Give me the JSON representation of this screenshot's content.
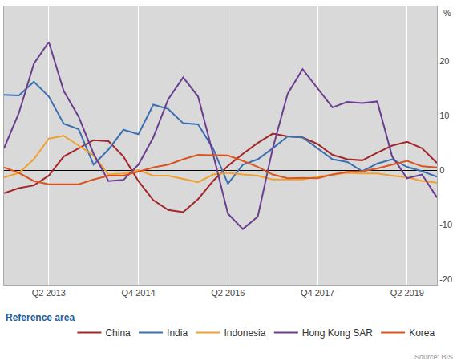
{
  "chart_data": {
    "type": "line",
    "y_label": "%",
    "legend_title": "Reference area",
    "source": "Source: BIS",
    "categories": [
      null,
      null,
      null,
      "Q2 2013",
      null,
      null,
      null,
      null,
      null,
      "Q4 2014",
      null,
      null,
      null,
      null,
      null,
      "Q2 2016",
      null,
      null,
      null,
      null,
      null,
      "Q4 2017",
      null,
      null,
      null,
      null,
      null,
      "Q2 2019",
      null,
      null
    ],
    "series": [
      {
        "name": "China",
        "color": "#a3262a",
        "values": [
          -4.2,
          -3.3,
          -2.8,
          -1,
          2.5,
          4,
          5.5,
          5.3,
          2.5,
          -2,
          -5.5,
          -7.3,
          -7.7,
          -5.3,
          -2,
          0.8,
          3,
          5,
          6.7,
          6.2,
          6,
          4.8,
          2.8,
          2,
          1.8,
          3.2,
          4.5,
          5.2,
          4,
          1.3
        ]
      },
      {
        "name": "India",
        "color": "#3a6fb0",
        "values": [
          13.8,
          13.7,
          16.2,
          13.5,
          8.5,
          7.5,
          1,
          3.8,
          7.4,
          6.6,
          12,
          11.2,
          8.6,
          8.4,
          4,
          -2.5,
          1,
          2,
          4,
          6.2,
          6,
          4,
          2,
          1.5,
          -0.2,
          1.2,
          2,
          0.6,
          -0.2,
          -1.2
        ]
      },
      {
        "name": "Indonesia",
        "color": "#f0a030",
        "values": [
          -1.3,
          -0.5,
          2,
          5.8,
          6.3,
          4.5,
          2.7,
          -0.8,
          -0.6,
          0,
          -1,
          -1,
          -1.6,
          -2.2,
          -0.8,
          -0.5,
          -0.8,
          -1,
          -1.7,
          -1.7,
          -1.7,
          -1.2,
          -0.8,
          -0.5,
          -0.6,
          -0.6,
          -1,
          -1.3,
          -2,
          -2.3
        ]
      },
      {
        "name": "Hong Kong SAR",
        "color": "#6b3d8f",
        "values": [
          4,
          10.5,
          19.5,
          23.5,
          14.5,
          9.8,
          3,
          -2,
          -1.8,
          1,
          6,
          13,
          17,
          13.5,
          3,
          -8,
          -10.8,
          -8.5,
          4,
          14,
          18.5,
          15,
          11.5,
          12.5,
          12.3,
          12.6,
          2.5,
          -1.5,
          -0.8,
          -5
        ]
      },
      {
        "name": "Korea",
        "color": "#d9541e",
        "values": [
          0.5,
          -0.5,
          -2,
          -2.6,
          -2.6,
          -2.6,
          -1.7,
          -1,
          -1,
          -0.3,
          0.5,
          1,
          2,
          2.8,
          2.8,
          2.7,
          1.7,
          0.6,
          -0.8,
          -1.5,
          -1.4,
          -1.5,
          -0.8,
          -0.3,
          -0.2,
          0.3,
          1,
          1.7,
          0.7,
          0.5
        ]
      }
    ],
    "ylim": [
      -21,
      30
    ],
    "yticks": [
      -20,
      -10,
      0,
      10,
      20
    ],
    "grid": true,
    "legend": "bottom"
  }
}
